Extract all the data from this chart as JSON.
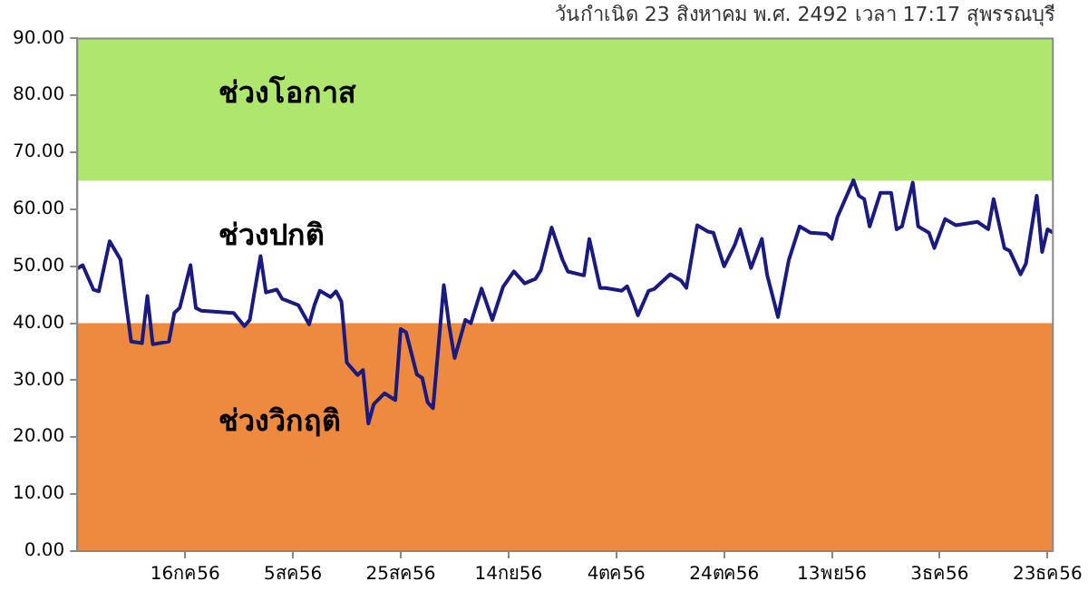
{
  "chart_data": {
    "type": "line",
    "title": "วันกำเนิด 23 สิงหาคม พ.ศ. 2492 เวลา 17:17 สุพรรณบุรี",
    "x": [
      "--06-26",
      "--06-27",
      "--06-29",
      "--06-30",
      "--07-02",
      "--07-04",
      "--07-05",
      "--07-06",
      "--07-08",
      "--07-09",
      "--07-10",
      "--07-13",
      "--07-14",
      "--07-15",
      "--07-17",
      "--07-18",
      "--07-19",
      "--07-25",
      "--07-27",
      "--07-28",
      "--07-30",
      "--07-31",
      "--08-02",
      "--08-03",
      "--08-06",
      "--08-08",
      "--08-09",
      "--08-10",
      "--08-12",
      "--08-13",
      "--08-14",
      "--08-15",
      "--08-16",
      "--08-17",
      "--08-18",
      "--08-19",
      "--08-20",
      "--08-22",
      "--08-24",
      "--08-25",
      "--08-26",
      "--08-28",
      "--08-29",
      "--08-30",
      "--08-31",
      "--09-02",
      "--09-03",
      "--09-04",
      "--09-06",
      "--09-07",
      "--09-09",
      "--09-11",
      "--09-13",
      "--09-15",
      "--09-17",
      "--09-19",
      "--09-20",
      "--09-22",
      "--09-24",
      "--09-25",
      "--09-28",
      "--09-29",
      "--10-01",
      "--10-02",
      "--10-05",
      "--10-06",
      "--10-07",
      "--10-08",
      "--10-10",
      "--10-11",
      "--10-14",
      "--10-16",
      "--10-17",
      "--10-19",
      "--10-21",
      "--10-22",
      "--10-24",
      "--10-26",
      "--10-27",
      "--10-29",
      "--10-31",
      "--11-01",
      "--11-03",
      "--11-05",
      "--11-07",
      "--11-09",
      "--11-12",
      "--11-13",
      "--11-14",
      "--11-17",
      "--11-18",
      "--11-19",
      "--11-20",
      "--11-22",
      "--11-24",
      "--11-25",
      "--11-26",
      "--11-28",
      "--11-29",
      "--12-01",
      "--12-02",
      "--12-04",
      "--12-06",
      "--12-10",
      "--12-12",
      "--12-13",
      "--12-15",
      "--12-16",
      "--12-18",
      "--12-19",
      "--12-21",
      "--12-22",
      "--12-23",
      "--12-24"
    ],
    "series": [
      {
        "color": "#1a1a80",
        "values": [
          49.6,
          50.2,
          45.9,
          45.6,
          54.4,
          51.2,
          43.8,
          36.8,
          36.5,
          44.8,
          36.3,
          36.8,
          41.8,
          42.7,
          50.2,
          42.7,
          42.2,
          41.8,
          39.5,
          40.6,
          51.8,
          45.4,
          45.9,
          44.3,
          43.2,
          39.8,
          43.2,
          45.7,
          44.6,
          45.6,
          43.8,
          33.1,
          32,
          30.9,
          31.8,
          22.4,
          25.8,
          27.7,
          26.5,
          39,
          38.4,
          31,
          30.4,
          26.1,
          25.1,
          46.7,
          39.5,
          33.9,
          40.6,
          40,
          46.1,
          40.6,
          46.4,
          49.1,
          47,
          47.8,
          49.3,
          56.8,
          51.2,
          49.1,
          48.4,
          54.8,
          46.2,
          46.2,
          45.7,
          46.5,
          44.1,
          41.4,
          45.7,
          46,
          48.6,
          47.5,
          46.2,
          57.2,
          56.1,
          55.9,
          50,
          53.8,
          56.5,
          49.7,
          54.8,
          48.4,
          41.1,
          51.1,
          57,
          55.9,
          55.7,
          54.8,
          58.6,
          65.1,
          62.4,
          61.8,
          57,
          62.9,
          62.9,
          56.5,
          57,
          64.7,
          57,
          55.9,
          53.2,
          58.3,
          57.2,
          57.8,
          56.5,
          61.8,
          53.2,
          52.7,
          48.6,
          50.5,
          62.4,
          52.5,
          56.5,
          55.9
        ]
      }
    ],
    "xlim": [
      "--06-26",
      "--12-24"
    ],
    "xticks": [
      {
        "value": "--07-16",
        "label": "16กค56"
      },
      {
        "value": "--08-05",
        "label": "5สค56"
      },
      {
        "value": "--08-25",
        "label": "25สค56"
      },
      {
        "value": "--09-14",
        "label": "14กย56"
      },
      {
        "value": "--10-04",
        "label": "4ตค56"
      },
      {
        "value": "--10-24",
        "label": "24ตค56"
      },
      {
        "value": "--11-13",
        "label": "13พย56"
      },
      {
        "value": "--12-03",
        "label": "3ธค56"
      },
      {
        "value": "--12-23",
        "label": "23ธค56"
      }
    ],
    "ylim": [
      0,
      90
    ],
    "yticks": [
      {
        "value": 0,
        "label": "0.00"
      },
      {
        "value": 10,
        "label": "10.00"
      },
      {
        "value": 20,
        "label": "20.00"
      },
      {
        "value": 30,
        "label": "30.00"
      },
      {
        "value": 40,
        "label": "40.00"
      },
      {
        "value": 50,
        "label": "50.00"
      },
      {
        "value": 60,
        "label": "60.00"
      },
      {
        "value": 70,
        "label": "70.00"
      },
      {
        "value": 80,
        "label": "80.00"
      },
      {
        "value": 90,
        "label": "90.00"
      }
    ],
    "bands": [
      {
        "axis": "y",
        "from": 65,
        "to": 90,
        "label": "ช่วงโอกาส",
        "color": "#aee66e"
      },
      {
        "axis": "y",
        "from": 40,
        "to": 65,
        "label": "ช่วงปกติ",
        "color": "#ffffff"
      },
      {
        "axis": "y",
        "from": 0,
        "to": 40,
        "label": "ช่วงวิกฤติ",
        "color": "#ee8a3f"
      }
    ],
    "grid": false,
    "legend": false,
    "marker": "none",
    "line_style": "solid"
  }
}
